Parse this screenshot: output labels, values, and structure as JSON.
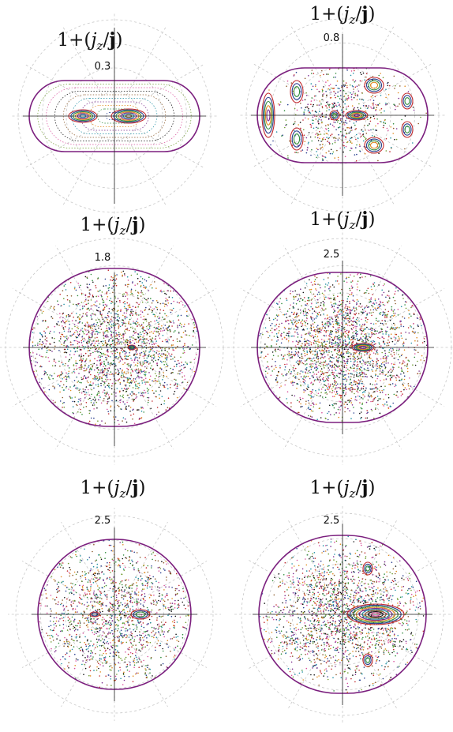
{
  "chart_data": [
    {
      "type": "scatter",
      "title": "1+(jz/j)",
      "radial_tick": "0.3",
      "shape": "stadium",
      "structure": "regular",
      "boundary_color": "#7b1f7e",
      "grid": true
    },
    {
      "type": "scatter",
      "title": "1+(jz/j)",
      "radial_tick": "0.8",
      "shape": "stadium",
      "structure": "mixed",
      "boundary_color": "#7b1f7e",
      "grid": true
    },
    {
      "type": "scatter",
      "title": "1+(jz/j)",
      "radial_tick": "1.8",
      "shape": "disk",
      "structure": "chaotic",
      "boundary_color": "#7b1f7e",
      "grid": true
    },
    {
      "type": "scatter",
      "title": "1+(jz/j)",
      "radial_tick": "2.5",
      "shape": "disk",
      "structure": "chaotic-with-island",
      "boundary_color": "#7b1f7e",
      "grid": true
    },
    {
      "type": "scatter",
      "title": "1+(jz/j)",
      "radial_tick": "2.5",
      "shape": "disk",
      "structure": "chaotic-with-small-islands",
      "boundary_color": "#7b1f7e",
      "grid": true
    },
    {
      "type": "scatter",
      "title": "1+(jz/j)",
      "radial_tick": "2.5",
      "shape": "disk",
      "structure": "chaotic-with-large-island",
      "boundary_color": "#7b1f7e",
      "grid": true
    }
  ],
  "colors": {
    "boundary": "#7b1f7e",
    "grid": "#c8c8c8",
    "axis": "#222222",
    "palette": [
      "#c0282d",
      "#2a3f8f",
      "#2e8b3a",
      "#e08a1e",
      "#7b2a8c",
      "#1f8fa3",
      "#8b5a2b",
      "#111111",
      "#d94f9c",
      "#6e9b2f"
    ]
  }
}
